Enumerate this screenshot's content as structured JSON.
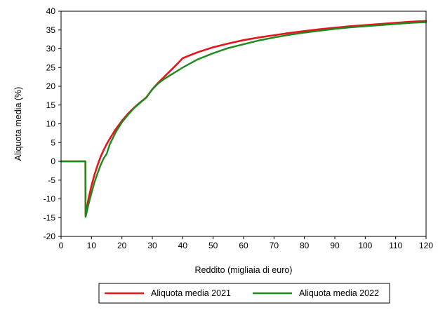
{
  "chart_data": {
    "type": "line",
    "xlabel": "Reddito (migliaia di euro)",
    "ylabel": "Aliquota media (%)",
    "xlim": [
      0,
      120
    ],
    "ylim": [
      -20,
      40
    ],
    "xticks": [
      0,
      10,
      20,
      30,
      40,
      50,
      60,
      70,
      80,
      90,
      100,
      110,
      120
    ],
    "yticks": [
      -20,
      -15,
      -10,
      -5,
      0,
      5,
      10,
      15,
      20,
      25,
      30,
      35,
      40
    ],
    "grid": false,
    "legend_position": "bottom",
    "series": [
      {
        "name": "Aliquota media 2021",
        "color": "#e8141b",
        "x": [
          0,
          8,
          8.05,
          8.3,
          9,
          10,
          11,
          12,
          13,
          14,
          15,
          16,
          18,
          20,
          22,
          24,
          26,
          28,
          30,
          32,
          34,
          36,
          38,
          40,
          45,
          50,
          55,
          60,
          65,
          70,
          75,
          80,
          85,
          90,
          95,
          100,
          105,
          110,
          115,
          120
        ],
        "y": [
          0,
          0,
          -14.5,
          -13.5,
          -10.0,
          -6.5,
          -3.5,
          -1.0,
          1.2,
          3.0,
          4.6,
          6.0,
          8.6,
          10.8,
          12.7,
          14.3,
          15.7,
          17.0,
          19.2,
          21.0,
          22.6,
          24.2,
          25.8,
          27.5,
          29.1,
          30.4,
          31.4,
          32.3,
          33.0,
          33.6,
          34.2,
          34.7,
          35.2,
          35.6,
          36.0,
          36.3,
          36.6,
          36.9,
          37.2,
          37.4
        ]
      },
      {
        "name": "Aliquota media 2022",
        "color": "#1c8a1c",
        "x": [
          0,
          8,
          8.05,
          8.3,
          9,
          10,
          11,
          12,
          13,
          14,
          15,
          16,
          18,
          20,
          22,
          24,
          26,
          28,
          30,
          32,
          34,
          36,
          38,
          40,
          45,
          50,
          55,
          60,
          65,
          70,
          75,
          80,
          85,
          90,
          95,
          100,
          105,
          110,
          115,
          120
        ],
        "y": [
          0,
          0,
          -14.8,
          -14.0,
          -11.5,
          -8.5,
          -5.5,
          -3.2,
          -1.0,
          0.8,
          2.0,
          4.5,
          7.8,
          10.4,
          12.4,
          14.2,
          15.6,
          17.0,
          19.2,
          20.8,
          22.0,
          23.0,
          24.0,
          25.0,
          27.2,
          28.8,
          30.2,
          31.2,
          32.2,
          33.0,
          33.7,
          34.3,
          34.8,
          35.3,
          35.7,
          36.0,
          36.3,
          36.6,
          36.9,
          37.1
        ]
      }
    ]
  }
}
